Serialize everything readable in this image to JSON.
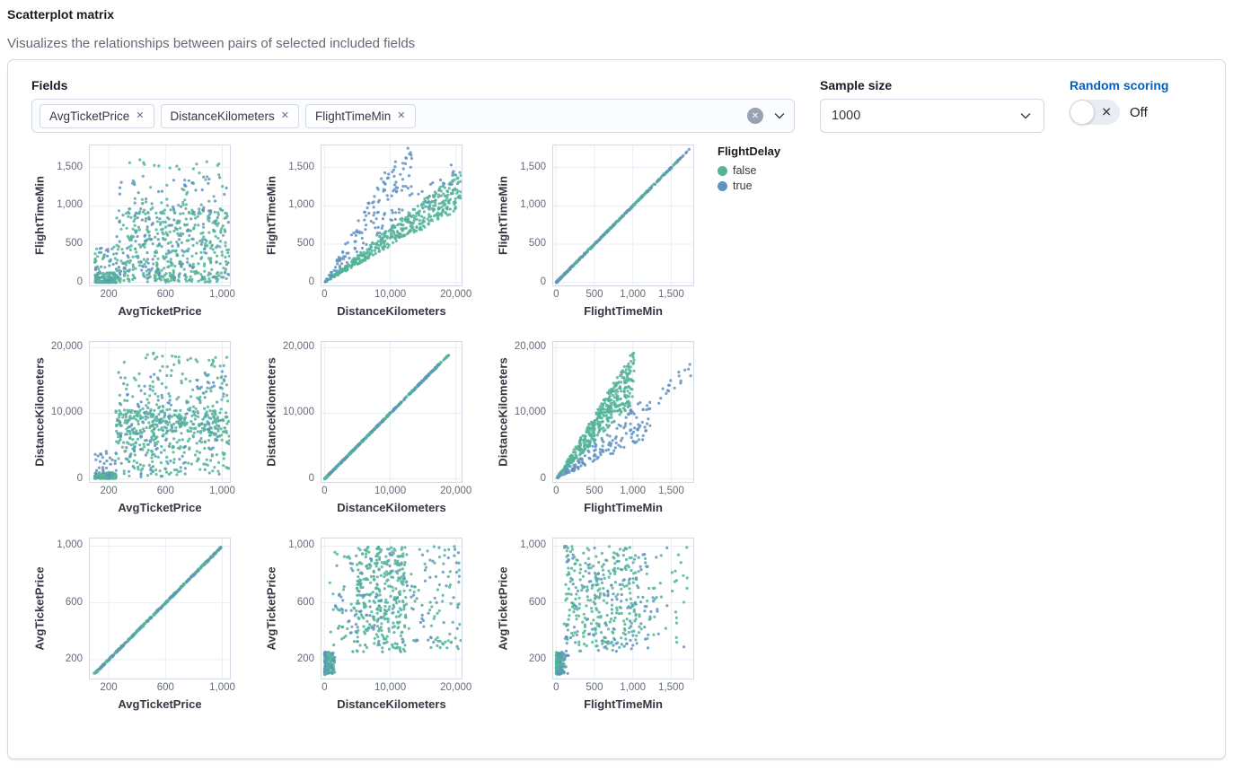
{
  "header": {
    "title": "Scatterplot matrix",
    "subtitle": "Visualizes the relationships between pairs of selected included fields"
  },
  "controls": {
    "fields_label": "Fields",
    "fields": [
      {
        "label": "AvgTicketPrice",
        "remove_icon": "cross"
      },
      {
        "label": "DistanceKilometers",
        "remove_icon": "cross"
      },
      {
        "label": "FlightTimeMin",
        "remove_icon": "cross"
      }
    ],
    "clear_icon": "cross-in-circle",
    "dropdown_icon": "chevron-down",
    "sample_size_label": "Sample size",
    "sample_size_value": "1000",
    "random_scoring_label": "Random scoring",
    "random_scoring_state": "Off"
  },
  "chart_data": {
    "type": "scatter",
    "matrix_fields": [
      "AvgTicketPrice",
      "DistanceKilometers",
      "FlightTimeMin"
    ],
    "legend": {
      "title": "FlightDelay",
      "items": [
        {
          "label": "false",
          "color": "#54B399"
        },
        {
          "label": "true",
          "color": "#6092C0"
        }
      ]
    },
    "point_color_false": "#54B399",
    "point_color_true": "#6092C0",
    "grid_color": "#e9edf6",
    "border_color": "#d3dae6",
    "axes": {
      "AvgTicketPrice": {
        "title": "AvgTicketPrice",
        "domain": [
          60,
          1060
        ],
        "ticks": [
          200,
          600,
          1000
        ],
        "tick_labels": [
          "200",
          "600",
          "1,000"
        ]
      },
      "DistanceKilometers": {
        "title": "DistanceKilometers",
        "domain": [
          -600,
          21000
        ],
        "ticks": [
          0,
          10000,
          20000
        ],
        "tick_labels": [
          "0",
          "10,000",
          "20,000"
        ]
      },
      "FlightTimeMin": {
        "title": "FlightTimeMin",
        "domain": [
          -50,
          1800
        ],
        "ticks": [
          0,
          500,
          1000,
          1500
        ],
        "tick_labels": [
          "0",
          "500",
          "1,000",
          "1,500"
        ]
      }
    },
    "panels": [
      {
        "x_field": "AvgTicketPrice",
        "y_field": "FlightTimeMin",
        "pattern": "cloud",
        "clusters": [
          {
            "t": "box",
            "n": 430,
            "c": "f",
            "x": [
              250,
              1055,
              1
            ],
            "y": [
              5,
              950,
              1.25
            ]
          },
          {
            "t": "box",
            "n": 70,
            "c": "f",
            "x": [
              270,
              1055,
              1
            ],
            "y": [
              900,
              1620,
              1.7
            ]
          },
          {
            "t": "box",
            "n": 140,
            "c": "t",
            "x": [
              250,
              1055,
              1
            ],
            "y": [
              60,
              1380,
              1.35
            ]
          },
          {
            "t": "box",
            "n": 120,
            "c": "f",
            "x": [
              100,
              255,
              1
            ],
            "y": [
              0,
              130,
              1.8
            ]
          },
          {
            "t": "box",
            "n": 28,
            "c": "t",
            "x": [
              100,
              255,
              1
            ],
            "y": [
              5,
              470,
              1
            ]
          },
          {
            "t": "box",
            "n": 22,
            "c": "f",
            "x": [
              100,
              255,
              1
            ],
            "y": [
              90,
              470,
              1
            ]
          }
        ]
      },
      {
        "x_field": "DistanceKilometers",
        "y_field": "FlightTimeMin",
        "pattern": "fan",
        "clusters": [
          {
            "t": "fan",
            "n": 460,
            "c": "f",
            "x": [
              50,
              20800,
              0.85
            ],
            "slope": 0.0465,
            "m": [
              1.0,
              1.55
            ]
          },
          {
            "t": "fan",
            "n": 150,
            "c": "t",
            "x": [
              50,
              13500,
              0.85
            ],
            "slope": 0.075,
            "m": [
              1.0,
              2.1
            ]
          },
          {
            "t": "fan",
            "n": 18,
            "c": "t",
            "x": [
              13500,
              20500,
              1
            ],
            "slope": 0.0465,
            "m": [
              1.35,
              1.75
            ]
          }
        ]
      },
      {
        "x_field": "FlightTimeMin",
        "y_field": "FlightTimeMin",
        "pattern": "identity",
        "clusters": [
          {
            "t": "line",
            "n": 420,
            "c": "f",
            "x": [
              5,
              1590,
              1.5
            ],
            "noise": 6
          },
          {
            "t": "line",
            "n": 70,
            "c": "t",
            "x": [
              5,
              1740,
              1.35
            ],
            "noise": 6
          }
        ]
      },
      {
        "x_field": "AvgTicketPrice",
        "y_field": "DistanceKilometers",
        "pattern": "cloud",
        "clusters": [
          {
            "t": "box",
            "n": 280,
            "c": "f",
            "x": [
              250,
              1055,
              1
            ],
            "y": [
              6800,
              10400,
              1
            ]
          },
          {
            "t": "box",
            "n": 190,
            "c": "f",
            "x": [
              250,
              1055,
              1
            ],
            "y": [
              300,
              6800,
              0.85
            ]
          },
          {
            "t": "box",
            "n": 130,
            "c": "f",
            "x": [
              270,
              1055,
              1
            ],
            "y": [
              10400,
              19200,
              1.5
            ]
          },
          {
            "t": "box",
            "n": 120,
            "c": "t",
            "x": [
              250,
              1055,
              1
            ],
            "y": [
              300,
              16500,
              1
            ]
          },
          {
            "t": "box",
            "n": 110,
            "c": "f",
            "x": [
              100,
              255,
              1
            ],
            "y": [
              50,
              1000,
              1.6
            ]
          },
          {
            "t": "box",
            "n": 30,
            "c": "t",
            "x": [
              100,
              255,
              1
            ],
            "y": [
              100,
              4200,
              1.3
            ]
          }
        ]
      },
      {
        "x_field": "DistanceKilometers",
        "y_field": "DistanceKilometers",
        "pattern": "identity",
        "clusters": [
          {
            "t": "line",
            "n": 430,
            "c": "f",
            "x": [
              50,
              17600,
              1.2
            ],
            "noise": 70
          },
          {
            "t": "line",
            "n": 60,
            "c": "t",
            "x": [
              50,
              17600,
              1.1
            ],
            "noise": 70
          },
          {
            "t": "line",
            "n": 12,
            "c": "f",
            "x": [
              17600,
              19000,
              1
            ],
            "noise": 60
          }
        ]
      },
      {
        "x_field": "FlightTimeMin",
        "y_field": "DistanceKilometers",
        "pattern": "fan",
        "clusters": [
          {
            "t": "fan",
            "n": 430,
            "c": "f",
            "x": [
              10,
              1020,
              0.85
            ],
            "slope": 13.5,
            "m": [
              0.85,
              1.45
            ]
          },
          {
            "t": "fan",
            "n": 145,
            "c": "t",
            "x": [
              20,
              1250,
              0.9
            ],
            "slope": 8.0,
            "m": [
              0.65,
              1.35
            ]
          },
          {
            "t": "fan",
            "n": 18,
            "c": "t",
            "x": [
              1250,
              1760,
              1
            ],
            "slope": 9.5,
            "m": [
              0.9,
              1.1
            ]
          }
        ]
      },
      {
        "x_field": "AvgTicketPrice",
        "y_field": "AvgTicketPrice",
        "pattern": "identity",
        "clusters": [
          {
            "t": "line",
            "n": 380,
            "c": "f",
            "x": [
              100,
              1000,
              1
            ],
            "noise": 4
          },
          {
            "t": "line",
            "n": 45,
            "c": "t",
            "x": [
              100,
              1000,
              1
            ],
            "noise": 4
          }
        ]
      },
      {
        "x_field": "DistanceKilometers",
        "y_field": "AvgTicketPrice",
        "pattern": "cloud",
        "clusters": [
          {
            "t": "box",
            "n": 115,
            "c": "f",
            "x": [
              0,
              1600,
              1.8
            ],
            "y": [
              95,
              255,
              1
            ]
          },
          {
            "t": "box",
            "n": 25,
            "c": "t",
            "x": [
              0,
              1600,
              1.8
            ],
            "y": [
              95,
              255,
              1
            ]
          },
          {
            "t": "box",
            "n": 260,
            "c": "f",
            "x": [
              4800,
              12500,
              1
            ],
            "y": [
              255,
              1000,
              0.9
            ]
          },
          {
            "t": "box",
            "n": 170,
            "c": "f",
            "x": [
              800,
              20800,
              1
            ],
            "y": [
              255,
              1000,
              1
            ]
          },
          {
            "t": "box",
            "n": 110,
            "c": "t",
            "x": [
              1500,
              20800,
              1
            ],
            "y": [
              255,
              1000,
              1
            ]
          }
        ]
      },
      {
        "x_field": "FlightTimeMin",
        "y_field": "AvgTicketPrice",
        "pattern": "cloud",
        "clusters": [
          {
            "t": "box",
            "n": 115,
            "c": "f",
            "x": [
              0,
              110,
              1.6
            ],
            "y": [
              95,
              255,
              1
            ]
          },
          {
            "t": "box",
            "n": 25,
            "c": "t",
            "x": [
              0,
              160,
              1.5
            ],
            "y": [
              95,
              260,
              1
            ]
          },
          {
            "t": "box",
            "n": 290,
            "c": "f",
            "x": [
              100,
              1050,
              1
            ],
            "y": [
              255,
              1000,
              0.95
            ]
          },
          {
            "t": "box",
            "n": 95,
            "c": "t",
            "x": [
              130,
              1250,
              1
            ],
            "y": [
              255,
              1000,
              1
            ]
          },
          {
            "t": "box",
            "n": 45,
            "c": "f",
            "x": [
              1050,
              1750,
              1
            ],
            "y": [
              255,
              1000,
              1
            ]
          },
          {
            "t": "box",
            "n": 12,
            "c": "t",
            "x": [
              1050,
              1750,
              1
            ],
            "y": [
              255,
              1000,
              1
            ]
          }
        ]
      }
    ]
  }
}
